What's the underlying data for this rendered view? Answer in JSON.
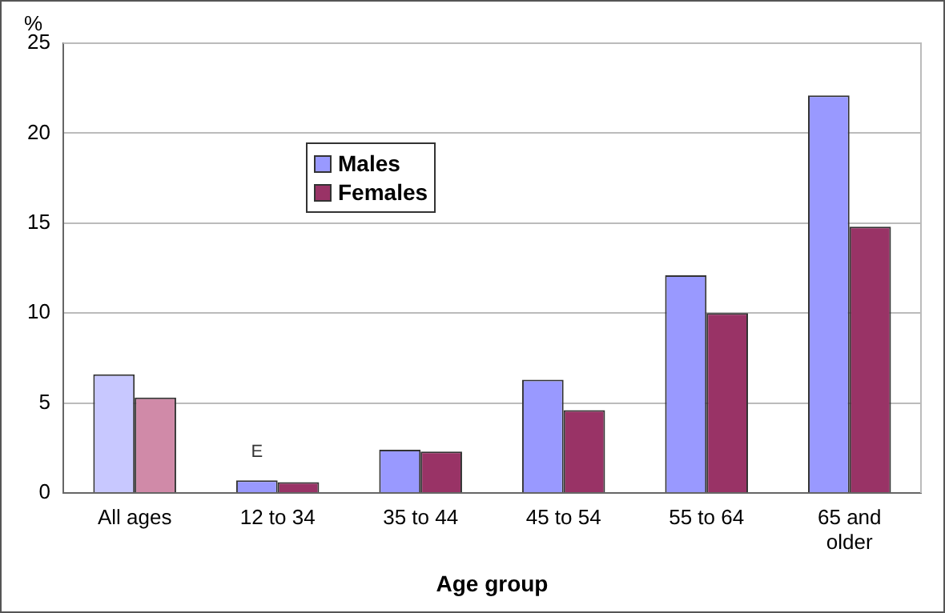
{
  "chart_data": {
    "type": "bar",
    "ylabel": "%",
    "xlabel": "Age group",
    "categories": [
      "All ages",
      "12 to 34",
      "35 to 44",
      "45 to 54",
      "55 to 64",
      "65 and older"
    ],
    "series": [
      {
        "name": "Males",
        "color": "#9999ff",
        "colors": [
          "#c8c8ff",
          "#9999ff",
          "#9999ff",
          "#9999ff",
          "#9999ff",
          "#9999ff"
        ],
        "values": [
          6.6,
          0.7,
          2.4,
          6.3,
          12.1,
          22.1
        ]
      },
      {
        "name": "Females",
        "color": "#993366",
        "colors": [
          "#d08aa8",
          "#993366",
          "#993366",
          "#993366",
          "#993366",
          "#993366"
        ],
        "values": [
          5.3,
          0.6,
          2.3,
          4.6,
          10.0,
          14.8
        ]
      }
    ],
    "annotations": [
      "E"
    ],
    "ylim": [
      0,
      25
    ],
    "yticks": [
      0,
      5,
      10,
      15,
      20,
      25
    ],
    "grid": "y",
    "legend": "top left"
  }
}
